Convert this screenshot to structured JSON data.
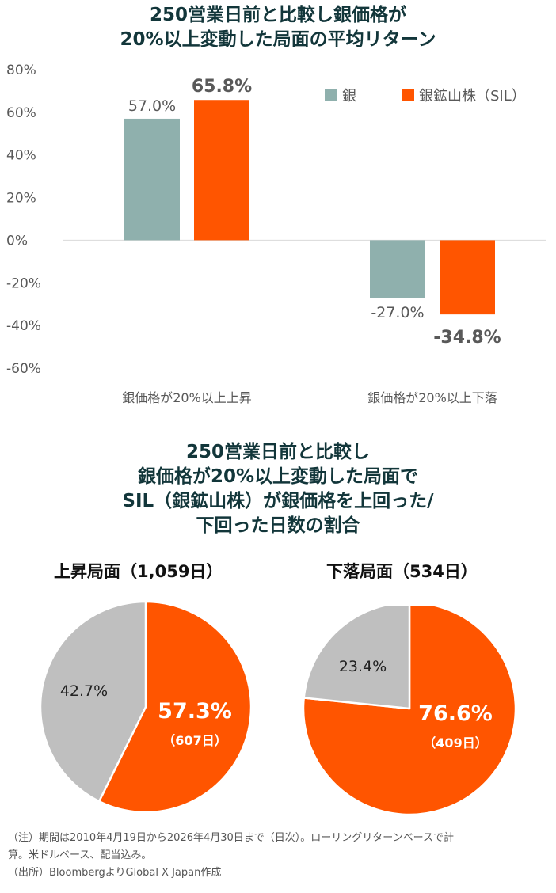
{
  "bar_title": {
    "line1": "250営業日前と比較し銀価格が",
    "line2": "20%以上変動した局面の平均リターン"
  },
  "pie_title": {
    "line1": "250営業日前と比較し",
    "line2": "銀価格が20%以上変動した局面で",
    "line3": "SIL（銀鉱山株）が銀価格を上回った/",
    "line4": "下回った日数の割合"
  },
  "colors": {
    "silver": "#8fb0ad",
    "sil": "#ff5500",
    "gray": "#bfbfbf",
    "axis": "#d9d9d9"
  },
  "chart_data": [
    {
      "type": "bar",
      "title": "250営業日前と比較し銀価格が20%以上変動した局面の平均リターン",
      "categories": [
        "銀価格が20%以上上昇",
        "銀価格が20%以上下落"
      ],
      "series": [
        {
          "name": "銀",
          "values": [
            57.0,
            -27.0
          ],
          "labels": [
            "57.0%",
            "-27.0%"
          ]
        },
        {
          "name": "銀鉱山株（SIL）",
          "values": [
            65.8,
            -34.8
          ],
          "labels": [
            "65.8%",
            "-34.8%"
          ]
        }
      ],
      "yticks": [
        "80%",
        "60%",
        "40%",
        "20%",
        "0%",
        "-20%",
        "-40%",
        "-60%"
      ],
      "ylim": [
        -60,
        80
      ],
      "legend_position": "top-right",
      "grid": false
    },
    {
      "type": "pie",
      "title": "上昇局面（1,059日）",
      "slices": [
        {
          "label": "57.3%",
          "value": 57.3,
          "days": "（607日）",
          "color": "#ff5500"
        },
        {
          "label": "42.7%",
          "value": 42.7,
          "color": "#bfbfbf"
        }
      ]
    },
    {
      "type": "pie",
      "title": "下落局面（534日）",
      "slices": [
        {
          "label": "76.6%",
          "value": 76.6,
          "days": "（409日）",
          "color": "#ff5500"
        },
        {
          "label": "23.4%",
          "value": 23.4,
          "color": "#bfbfbf"
        }
      ]
    }
  ],
  "notes": {
    "line1": "（注）期間は2010年4月19日から2026年4月30日まで（日次）。ローリングリターンベースで計",
    "line2": "算。米ドルベース、配当込み。",
    "line3": "（出所）BloombergよりGlobal X Japan作成"
  }
}
